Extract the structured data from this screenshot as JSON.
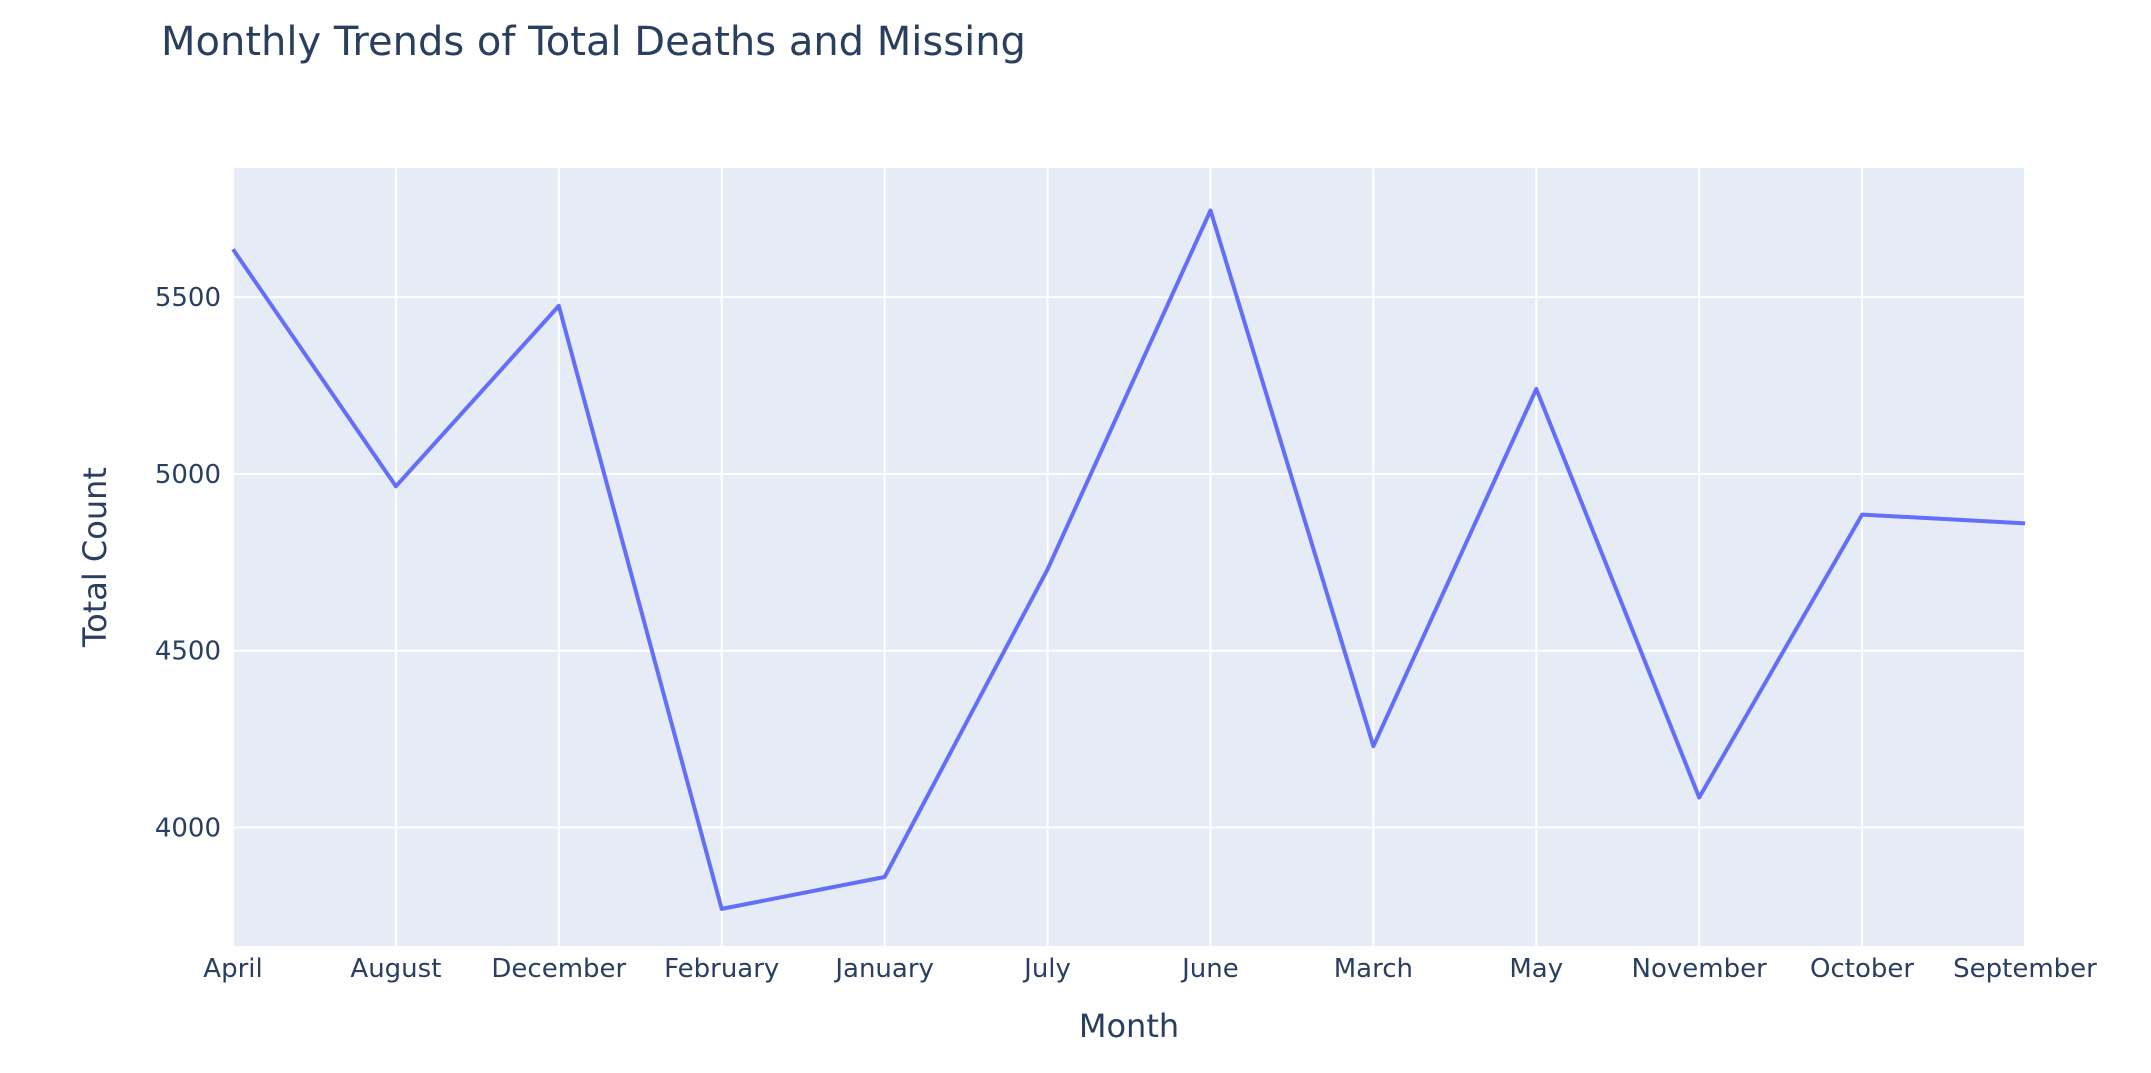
{
  "chart_data": {
    "type": "line",
    "title": "Monthly Trends of Total Deaths and Missing",
    "xlabel": "Month",
    "ylabel": "Total Count",
    "categories": [
      "April",
      "August",
      "December",
      "February",
      "January",
      "July",
      "June",
      "March",
      "May",
      "November",
      "October",
      "September"
    ],
    "series": [
      {
        "values": [
          5635,
          4965,
          5475,
          3770,
          3860,
          4730,
          5745,
          4230,
          5240,
          4085,
          4885,
          4860
        ]
      }
    ],
    "ylim": [
      3665,
      5865
    ],
    "yticks": [
      4000,
      4500,
      5000,
      5500
    ],
    "grid": true,
    "legend": "none",
    "colors": {
      "plot_bg": "#e5ecf6",
      "grid": "#ffffff",
      "line": "#636efa",
      "text": "#2a3f5f"
    }
  }
}
